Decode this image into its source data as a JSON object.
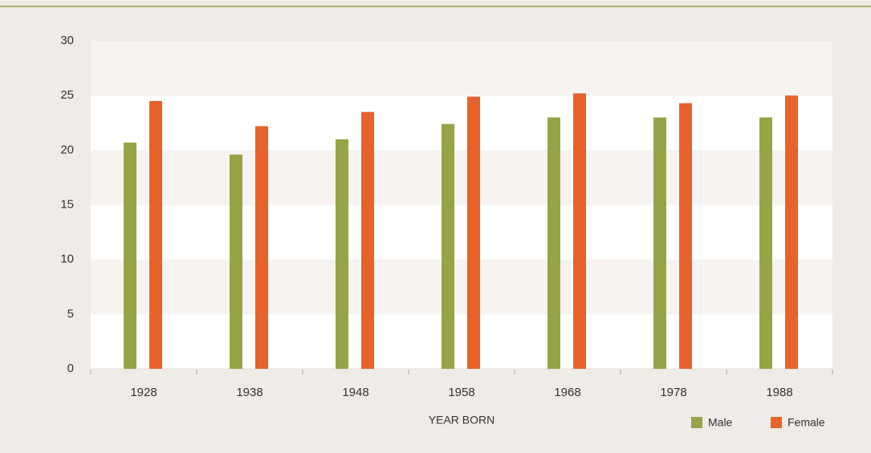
{
  "chart_data": {
    "type": "bar",
    "xlabel": "YEAR BORN",
    "categories": [
      "1928",
      "1938",
      "1948",
      "1958",
      "1968",
      "1978",
      "1988"
    ],
    "series": [
      {
        "name": "Male",
        "color": "#97a446",
        "values": [
          20.7,
          19.6,
          21.0,
          22.4,
          23.0,
          23.0,
          23.0
        ]
      },
      {
        "name": "Female",
        "color": "#e8622c",
        "values": [
          24.5,
          22.2,
          23.5,
          24.9,
          25.2,
          24.3,
          25.0
        ]
      }
    ],
    "ylim": [
      0,
      30
    ],
    "yticks": [
      0,
      5,
      10,
      15,
      20,
      25,
      30
    ],
    "grid": true,
    "legend": "bottom-right"
  }
}
